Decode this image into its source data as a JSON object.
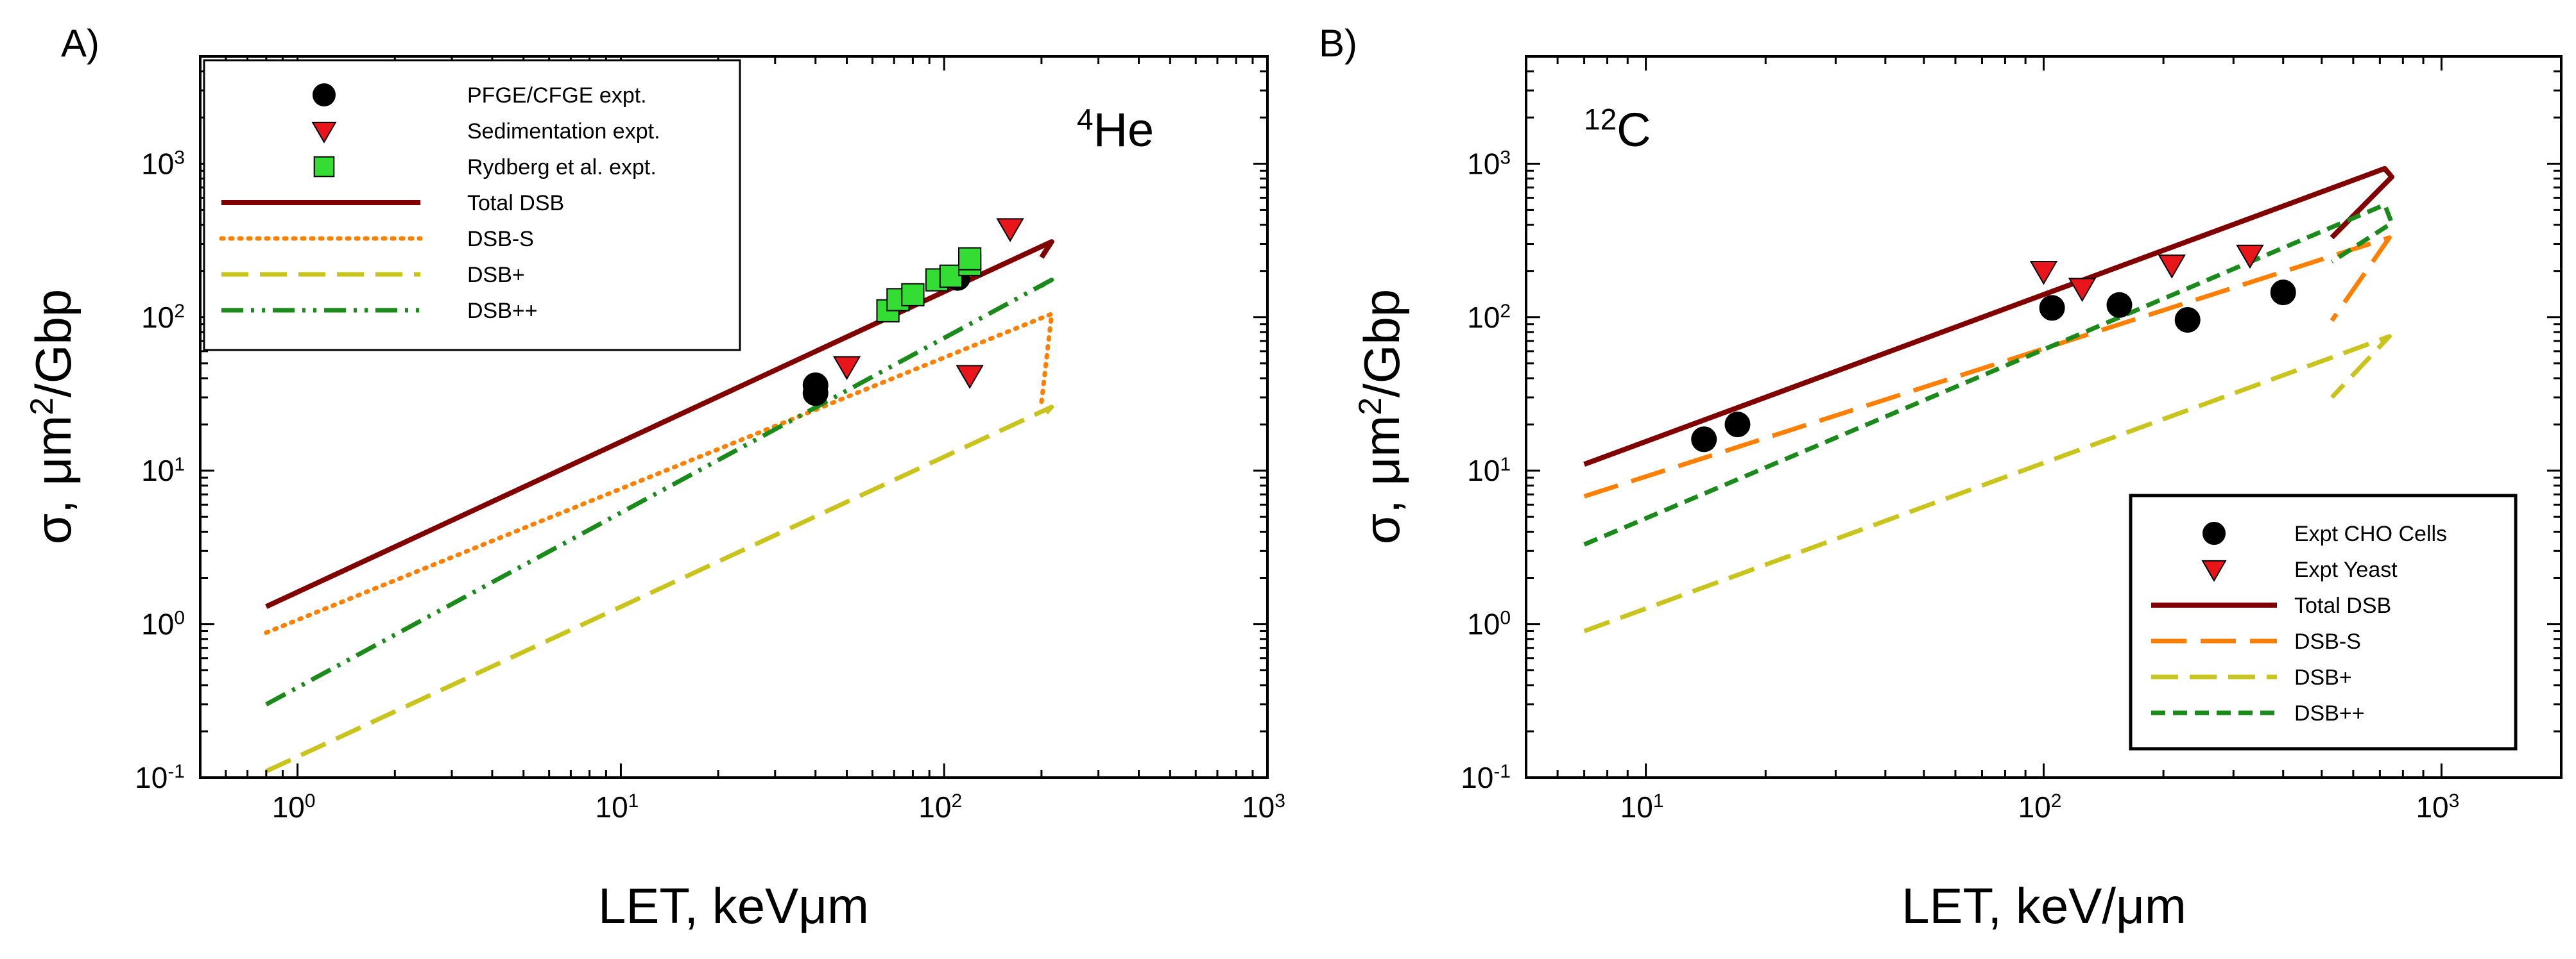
{
  "chart_data": [
    {
      "panel_label": "A)",
      "type": "line",
      "annotation": {
        "isotope_mass": "4",
        "element": "He"
      },
      "xlabel": "LET, keVμm",
      "ylabel": "σ, μm²/Gbp",
      "xscale": "log",
      "yscale": "log",
      "xlim": [
        0.5,
        1000
      ],
      "ylim": [
        0.1,
        5000
      ],
      "x_ticks": [
        {
          "base": "10",
          "exp": "0"
        },
        {
          "base": "10",
          "exp": "1"
        },
        {
          "base": "10",
          "exp": "2"
        },
        {
          "base": "10",
          "exp": "3"
        }
      ],
      "y_ticks": [
        {
          "base": "10",
          "exp": "-1"
        },
        {
          "base": "10",
          "exp": "0"
        },
        {
          "base": "10",
          "exp": "1"
        },
        {
          "base": "10",
          "exp": "2"
        },
        {
          "base": "10",
          "exp": "3"
        }
      ],
      "legend_position": "top-left",
      "series": [
        {
          "name": "PFGE/CFGE expt.",
          "kind": "marker",
          "marker": "circle",
          "color": "#000000",
          "points": [
            [
              40,
              36
            ],
            [
              40,
              32
            ],
            [
              110,
              180
            ]
          ]
        },
        {
          "name": "Sedimentation expt.",
          "kind": "marker",
          "marker": "triangle-down",
          "color": "#e8151b",
          "points": [
            [
              50,
              48
            ],
            [
              120,
              42
            ],
            [
              160,
              380
            ]
          ]
        },
        {
          "name": "Rydberg et al. expt.",
          "kind": "marker",
          "marker": "square",
          "color": "#33dd33",
          "points": [
            [
              67,
              110
            ],
            [
              72,
              130
            ],
            [
              80,
              140
            ],
            [
              95,
              175
            ],
            [
              105,
              185
            ],
            [
              120,
              220
            ],
            [
              120,
              240
            ]
          ]
        },
        {
          "name": "Total DSB",
          "kind": "line",
          "style": "solid",
          "color": "#800000",
          "points": [
            [
              0.8,
              1.3
            ],
            [
              215,
              310
            ],
            [
              200,
              245
            ]
          ]
        },
        {
          "name": "DSB-S",
          "kind": "line",
          "style": "dotted",
          "color": "#ff8000",
          "points": [
            [
              0.8,
              0.88
            ],
            [
              215,
              105
            ],
            [
              200,
              28
            ]
          ]
        },
        {
          "name": "DSB+",
          "kind": "line",
          "style": "dashed",
          "color": "#c8c41c",
          "points": [
            [
              0.8,
              0.11
            ],
            [
              215,
              26
            ],
            [
              200,
              22
            ]
          ]
        },
        {
          "name": "DSB++",
          "kind": "line",
          "style": "dashdotdot",
          "color": "#1a8a1a",
          "points": [
            [
              0.8,
              0.3
            ],
            [
              215,
              175
            ],
            [
              200,
              160
            ]
          ]
        }
      ]
    },
    {
      "panel_label": "B)",
      "type": "line",
      "annotation": {
        "isotope_mass": "12",
        "element": "C"
      },
      "xlabel": "LET, keV/μm",
      "ylabel": "σ, μm²/Gbp",
      "xscale": "log",
      "yscale": "log",
      "xlim": [
        5,
        2000
      ],
      "ylim": [
        0.1,
        5000
      ],
      "x_ticks": [
        {
          "base": "10",
          "exp": "1"
        },
        {
          "base": "10",
          "exp": "2"
        },
        {
          "base": "10",
          "exp": "3"
        }
      ],
      "y_ticks": [
        {
          "base": "10",
          "exp": "-1"
        },
        {
          "base": "10",
          "exp": "0"
        },
        {
          "base": "10",
          "exp": "1"
        },
        {
          "base": "10",
          "exp": "2"
        },
        {
          "base": "10",
          "exp": "3"
        }
      ],
      "legend_position": "bottom-right",
      "series": [
        {
          "name": "Expt CHO Cells",
          "kind": "marker",
          "marker": "circle",
          "color": "#000000",
          "points": [
            [
              14,
              16
            ],
            [
              17,
              20
            ],
            [
              105,
              115
            ],
            [
              155,
              120
            ],
            [
              230,
              96
            ],
            [
              400,
              145
            ]
          ]
        },
        {
          "name": "Expt Yeast",
          "kind": "marker",
          "marker": "triangle-down",
          "color": "#e8151b",
          "points": [
            [
              100,
              200
            ],
            [
              125,
              155
            ],
            [
              210,
              220
            ],
            [
              330,
              255
            ]
          ]
        },
        {
          "name": "Total DSB",
          "kind": "line",
          "style": "solid",
          "color": "#800000",
          "points": [
            [
              7,
              11
            ],
            [
              720,
              930
            ],
            [
              750,
              820
            ],
            [
              530,
              330
            ]
          ]
        },
        {
          "name": "DSB-S",
          "kind": "line",
          "style": "longdash",
          "color": "#ff8000",
          "points": [
            [
              7,
              6.8
            ],
            [
              740,
              330
            ],
            [
              530,
              95
            ]
          ]
        },
        {
          "name": "DSB+",
          "kind": "line",
          "style": "dashed",
          "color": "#c8c41c",
          "points": [
            [
              7,
              0.9
            ],
            [
              740,
              75
            ],
            [
              530,
              30
            ]
          ]
        },
        {
          "name": "DSB++",
          "kind": "line",
          "style": "shortdash",
          "color": "#1a8a1a",
          "points": [
            [
              7,
              3.3
            ],
            [
              720,
              540
            ],
            [
              750,
              410
            ],
            [
              530,
              230
            ]
          ]
        }
      ]
    }
  ]
}
